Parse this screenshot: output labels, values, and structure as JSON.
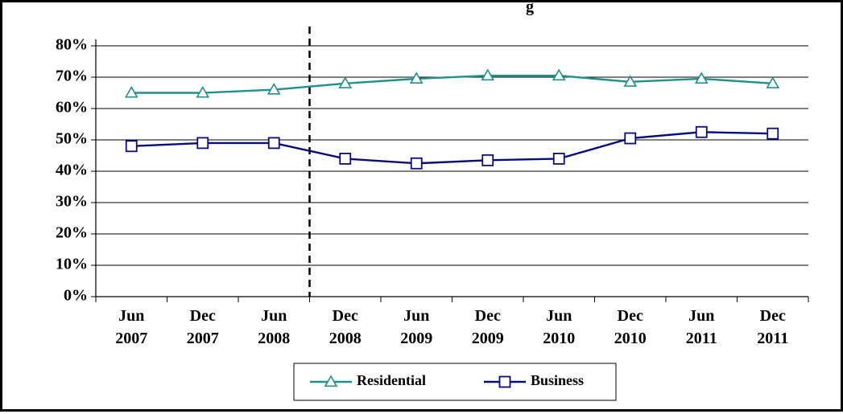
{
  "chart_data": {
    "type": "line",
    "title": "g",
    "categories": [
      [
        "Jun",
        "2007"
      ],
      [
        "Dec",
        "2007"
      ],
      [
        "Jun",
        "2008"
      ],
      [
        "Dec",
        "2008"
      ],
      [
        "Jun",
        "2009"
      ],
      [
        "Dec",
        "2009"
      ],
      [
        "Jun",
        "2010"
      ],
      [
        "Dec",
        "2010"
      ],
      [
        "Jun",
        "2011"
      ],
      [
        "Dec",
        "2011"
      ]
    ],
    "yticks": [
      "0%",
      "10%",
      "20%",
      "30%",
      "40%",
      "50%",
      "60%",
      "70%",
      "80%"
    ],
    "ylim": [
      0,
      80
    ],
    "grid": true,
    "legend_position": "bottom",
    "series": [
      {
        "name": "Residential",
        "marker": "triangle",
        "color": "#20908c",
        "values": [
          65,
          65,
          66,
          68,
          69.5,
          70.5,
          70.5,
          68.5,
          69.5,
          68
        ]
      },
      {
        "name": "Business",
        "marker": "square",
        "color": "#0a0a80",
        "values": [
          48,
          49,
          49,
          44,
          42.5,
          43.5,
          44,
          50.5,
          52.5,
          52
        ]
      }
    ],
    "annotations": [
      {
        "type": "vertical-dashed-line",
        "between": [
          "Jun 2008",
          "Dec 2008"
        ]
      }
    ]
  }
}
